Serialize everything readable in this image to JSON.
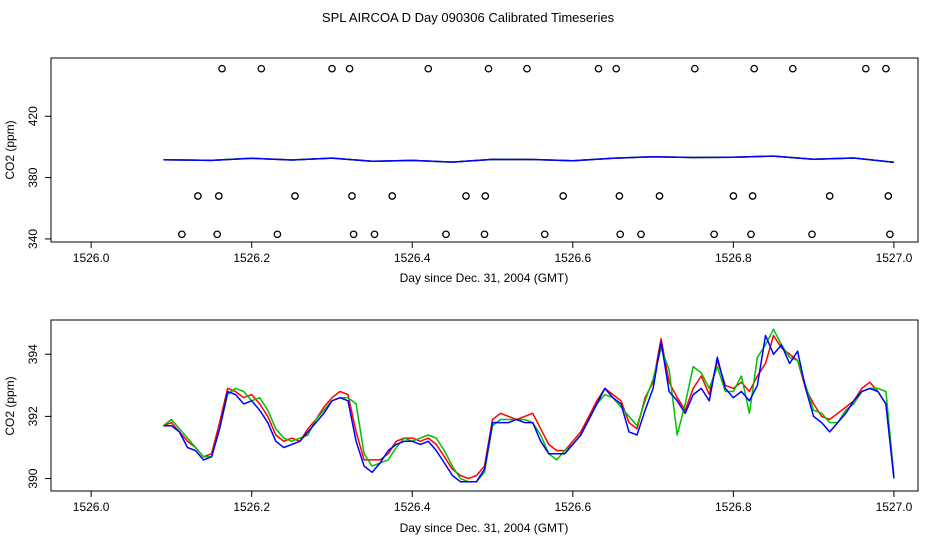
{
  "title": "SPL AIRCOA D  Day 090306  Calibrated Timeseries",
  "chart_data": [
    {
      "type": "line",
      "xlabel": "Day since Dec. 31, 2004 (GMT)",
      "ylabel": "CO2 (ppm)",
      "xlim": [
        1525.95,
        1527.03
      ],
      "ylim": [
        338,
        458
      ],
      "x_ticks": [
        "1526.0",
        "1526.2",
        "1526.4",
        "1526.6",
        "1526.8",
        "1527.0"
      ],
      "y_ticks": [
        "340",
        "380",
        "420"
      ],
      "grid": false,
      "series": [
        {
          "color": "#ff0000",
          "x": [
            1526.09,
            1526.15,
            1526.2,
            1526.25,
            1526.3,
            1526.35,
            1526.4,
            1526.45,
            1526.5,
            1526.55,
            1526.6,
            1526.65,
            1526.7,
            1526.75,
            1526.8,
            1526.85,
            1526.9,
            1526.95,
            1527.0
          ],
          "y": [
            391.7,
            391.2,
            392.6,
            391.5,
            392.7,
            390.6,
            391.2,
            390.1,
            391.9,
            391.8,
            391.0,
            392.6,
            393.6,
            393.1,
            393.3,
            394.0,
            392.0,
            392.8,
            390.0
          ]
        },
        {
          "color": "#00c000",
          "x": [
            1526.09,
            1526.15,
            1526.2,
            1526.25,
            1526.3,
            1526.35,
            1526.4,
            1526.45,
            1526.5,
            1526.55,
            1526.6,
            1526.65,
            1526.7,
            1526.75,
            1526.8,
            1526.85,
            1526.9,
            1526.95,
            1527.0
          ],
          "y": [
            391.7,
            391.2,
            392.6,
            391.5,
            392.7,
            390.6,
            391.2,
            390.1,
            391.9,
            391.8,
            391.0,
            392.6,
            393.6,
            393.1,
            393.3,
            394.0,
            392.0,
            392.8,
            390.0
          ]
        },
        {
          "color": "#0000ff",
          "x": [
            1526.09,
            1526.15,
            1526.2,
            1526.25,
            1526.3,
            1526.35,
            1526.4,
            1526.45,
            1526.5,
            1526.55,
            1526.6,
            1526.65,
            1526.7,
            1526.75,
            1526.8,
            1526.85,
            1526.9,
            1526.95,
            1527.0
          ],
          "y": [
            391.7,
            391.2,
            392.6,
            391.5,
            392.7,
            390.6,
            391.2,
            390.1,
            391.9,
            391.8,
            391.0,
            392.6,
            393.6,
            393.1,
            393.3,
            394.0,
            392.0,
            392.8,
            390.0
          ]
        }
      ],
      "markers": [
        {
          "shape": "open-circle",
          "color": "#000000",
          "x": [
            1526.163,
            1526.212,
            1526.3,
            1526.322,
            1526.42,
            1526.495,
            1526.543,
            1526.632,
            1526.654,
            1526.752,
            1526.826,
            1526.874,
            1526.965,
            1526.99
          ],
          "y": [
            451,
            451,
            451,
            451,
            451,
            451,
            451,
            451,
            451,
            451,
            451,
            451,
            451,
            451
          ]
        },
        {
          "shape": "open-circle",
          "color": "#000000",
          "x": [
            1526.133,
            1526.159,
            1526.254,
            1526.325,
            1526.375,
            1526.467,
            1526.491,
            1526.588,
            1526.658,
            1526.708,
            1526.8,
            1526.824,
            1526.92,
            1526.993
          ],
          "y": [
            368,
            368,
            368,
            368,
            368,
            368,
            368,
            368,
            368,
            368,
            368,
            368,
            368,
            368
          ]
        },
        {
          "shape": "open-circle",
          "color": "#000000",
          "x": [
            1526.113,
            1526.157,
            1526.232,
            1526.327,
            1526.353,
            1526.442,
            1526.49,
            1526.565,
            1526.659,
            1526.685,
            1526.776,
            1526.822,
            1526.898,
            1526.995
          ],
          "y": [
            343,
            343,
            343,
            343,
            343,
            343,
            343,
            343,
            343,
            343,
            343,
            343,
            343,
            343
          ]
        }
      ]
    },
    {
      "type": "line",
      "xlabel": "Day since Dec. 31, 2004 (GMT)",
      "ylabel": "CO2 (ppm)",
      "xlim": [
        1525.95,
        1527.03
      ],
      "ylim": [
        389.6,
        395.1
      ],
      "x_ticks": [
        "1526.0",
        "1526.2",
        "1526.4",
        "1526.6",
        "1526.8",
        "1527.0"
      ],
      "y_ticks": [
        "390",
        "392",
        "394"
      ],
      "grid": false,
      "series": [
        {
          "color": "#ff0000",
          "x": [
            1526.09,
            1526.1,
            1526.11,
            1526.12,
            1526.13,
            1526.14,
            1526.15,
            1526.16,
            1526.17,
            1526.18,
            1526.19,
            1526.2,
            1526.21,
            1526.22,
            1526.23,
            1526.24,
            1526.25,
            1526.26,
            1526.27,
            1526.28,
            1526.29,
            1526.3,
            1526.31,
            1526.32,
            1526.33,
            1526.34,
            1526.35,
            1526.36,
            1526.37,
            1526.38,
            1526.39,
            1526.4,
            1526.41,
            1526.42,
            1526.43,
            1526.44,
            1526.45,
            1526.46,
            1526.47,
            1526.48,
            1526.49,
            1526.5,
            1526.51,
            1526.52,
            1526.53,
            1526.54,
            1526.55,
            1526.56,
            1526.57,
            1526.58,
            1526.59,
            1526.6,
            1526.61,
            1526.62,
            1526.63,
            1526.64,
            1526.65,
            1526.66,
            1526.67,
            1526.68,
            1526.69,
            1526.7,
            1526.71,
            1526.72,
            1526.73,
            1526.74,
            1526.75,
            1526.76,
            1526.77,
            1526.78,
            1526.79,
            1526.8,
            1526.81,
            1526.82,
            1526.83,
            1526.84,
            1526.85,
            1526.86,
            1526.87,
            1526.88,
            1526.89,
            1526.9,
            1526.91,
            1526.92,
            1526.93,
            1526.94,
            1526.95,
            1526.96,
            1526.97,
            1526.98,
            1526.99,
            1527.0
          ],
          "y": [
            391.7,
            391.8,
            391.5,
            391.2,
            391.0,
            390.7,
            390.8,
            391.8,
            392.9,
            392.8,
            392.6,
            392.7,
            392.4,
            392.0,
            391.4,
            391.2,
            391.3,
            391.2,
            391.6,
            391.9,
            392.3,
            392.6,
            392.8,
            392.7,
            391.5,
            390.6,
            390.6,
            390.6,
            390.8,
            391.2,
            391.3,
            391.3,
            391.2,
            391.3,
            391.1,
            390.7,
            390.3,
            390.1,
            390.0,
            390.1,
            390.4,
            391.9,
            392.1,
            392.0,
            391.9,
            392.0,
            392.1,
            391.6,
            391.1,
            390.9,
            390.9,
            391.2,
            391.5,
            392.0,
            392.5,
            392.9,
            392.7,
            392.5,
            391.8,
            391.6,
            392.6,
            393.1,
            394.5,
            393.1,
            392.6,
            392.2,
            392.9,
            393.3,
            392.7,
            393.8,
            393.0,
            392.9,
            393.1,
            392.8,
            393.3,
            393.7,
            394.6,
            394.2,
            394.0,
            393.8,
            392.9,
            392.4,
            392.0,
            391.9,
            392.1,
            392.3,
            392.5,
            392.9,
            393.1,
            392.8,
            392.4,
            390.1
          ]
        },
        {
          "color": "#00c000",
          "x": [
            1526.09,
            1526.1,
            1526.11,
            1526.12,
            1526.13,
            1526.14,
            1526.15,
            1526.16,
            1526.17,
            1526.18,
            1526.19,
            1526.2,
            1526.21,
            1526.22,
            1526.23,
            1526.24,
            1526.25,
            1526.26,
            1526.27,
            1526.28,
            1526.29,
            1526.3,
            1526.31,
            1526.32,
            1526.33,
            1526.34,
            1526.35,
            1526.36,
            1526.37,
            1526.38,
            1526.39,
            1526.4,
            1526.41,
            1526.42,
            1526.43,
            1526.44,
            1526.45,
            1526.46,
            1526.47,
            1526.48,
            1526.49,
            1526.5,
            1526.51,
            1526.52,
            1526.53,
            1526.54,
            1526.55,
            1526.56,
            1526.57,
            1526.58,
            1526.59,
            1526.6,
            1526.61,
            1526.62,
            1526.63,
            1526.64,
            1526.65,
            1526.66,
            1526.67,
            1526.68,
            1526.69,
            1526.7,
            1526.71,
            1526.72,
            1526.73,
            1526.74,
            1526.75,
            1526.76,
            1526.77,
            1526.78,
            1526.79,
            1526.8,
            1526.81,
            1526.82,
            1526.83,
            1526.84,
            1526.85,
            1526.86,
            1526.87,
            1526.88,
            1526.89,
            1526.9,
            1526.91,
            1526.92,
            1526.93,
            1526.94,
            1526.95,
            1526.96,
            1526.97,
            1526.98,
            1526.99,
            1527.0
          ],
          "y": [
            391.7,
            391.9,
            391.6,
            391.3,
            391.0,
            390.7,
            390.7,
            391.6,
            392.7,
            392.9,
            392.8,
            392.5,
            392.6,
            392.2,
            391.6,
            391.3,
            391.2,
            391.3,
            391.4,
            391.9,
            392.2,
            392.5,
            392.6,
            392.6,
            392.4,
            390.8,
            390.4,
            390.5,
            390.6,
            391.0,
            391.3,
            391.2,
            391.3,
            391.4,
            391.3,
            390.9,
            390.4,
            390.0,
            389.9,
            389.9,
            390.2,
            391.7,
            391.9,
            391.9,
            391.9,
            391.9,
            391.8,
            391.4,
            390.8,
            390.6,
            390.9,
            391.1,
            391.4,
            391.9,
            392.4,
            392.7,
            392.6,
            392.3,
            392.0,
            391.7,
            392.5,
            393.2,
            394.2,
            393.5,
            391.4,
            392.4,
            393.6,
            393.4,
            392.9,
            393.6,
            392.8,
            392.8,
            393.3,
            392.1,
            393.9,
            394.3,
            394.8,
            394.3,
            393.9,
            393.8,
            393.0,
            392.2,
            392.1,
            391.8,
            391.8,
            392.2,
            392.4,
            392.8,
            392.9,
            392.9,
            392.8,
            390.1
          ]
        },
        {
          "color": "#0000ff",
          "x": [
            1526.09,
            1526.1,
            1526.11,
            1526.12,
            1526.13,
            1526.14,
            1526.15,
            1526.16,
            1526.17,
            1526.18,
            1526.19,
            1526.2,
            1526.21,
            1526.22,
            1526.23,
            1526.24,
            1526.25,
            1526.26,
            1526.27,
            1526.28,
            1526.29,
            1526.3,
            1526.31,
            1526.32,
            1526.33,
            1526.34,
            1526.35,
            1526.36,
            1526.37,
            1526.38,
            1526.39,
            1526.4,
            1526.41,
            1526.42,
            1526.43,
            1526.44,
            1526.45,
            1526.46,
            1526.47,
            1526.48,
            1526.49,
            1526.5,
            1526.51,
            1526.52,
            1526.53,
            1526.54,
            1526.55,
            1526.56,
            1526.57,
            1526.58,
            1526.59,
            1526.6,
            1526.61,
            1526.62,
            1526.63,
            1526.64,
            1526.65,
            1526.66,
            1526.67,
            1526.68,
            1526.69,
            1526.7,
            1526.71,
            1526.72,
            1526.73,
            1526.74,
            1526.75,
            1526.76,
            1526.77,
            1526.78,
            1526.79,
            1526.8,
            1526.81,
            1526.82,
            1526.83,
            1526.84,
            1526.85,
            1526.86,
            1526.87,
            1526.88,
            1526.89,
            1526.9,
            1526.91,
            1526.92,
            1526.93,
            1526.94,
            1526.95,
            1526.96,
            1526.97,
            1526.98,
            1526.99,
            1527.0
          ],
          "y": [
            391.7,
            391.7,
            391.5,
            391.0,
            390.9,
            390.6,
            390.7,
            391.6,
            392.8,
            392.7,
            392.4,
            392.5,
            392.2,
            391.8,
            391.2,
            391.0,
            391.1,
            391.2,
            391.5,
            391.8,
            392.1,
            392.5,
            392.6,
            392.5,
            391.2,
            390.4,
            390.2,
            390.5,
            390.9,
            391.1,
            391.2,
            391.2,
            391.1,
            391.2,
            390.9,
            390.5,
            390.1,
            389.9,
            389.9,
            389.9,
            390.3,
            391.8,
            391.8,
            391.8,
            391.9,
            391.8,
            391.8,
            391.2,
            390.8,
            390.8,
            390.8,
            391.1,
            391.4,
            391.9,
            392.4,
            392.9,
            392.6,
            392.4,
            391.5,
            391.4,
            392.2,
            392.9,
            394.4,
            392.8,
            392.5,
            392.1,
            392.7,
            392.9,
            392.5,
            393.9,
            392.9,
            392.6,
            392.8,
            392.5,
            393.0,
            394.6,
            394.0,
            394.3,
            393.7,
            394.1,
            392.9,
            392.0,
            391.8,
            391.5,
            391.8,
            392.1,
            392.5,
            392.8,
            392.9,
            392.8,
            392.4,
            390.0
          ]
        }
      ]
    }
  ]
}
